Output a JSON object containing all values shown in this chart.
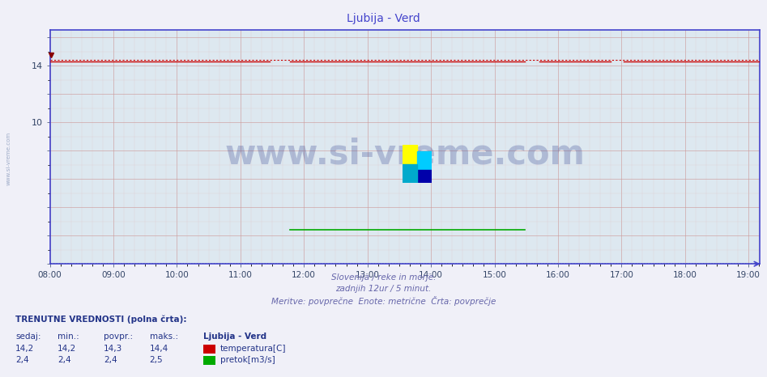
{
  "title": "Ljubija - Verd",
  "title_color": "#4444cc",
  "background_color": "#f0f0f8",
  "plot_bg_color": "#dde8f0",
  "x_start_hour": 8.0,
  "x_end_hour": 19.17,
  "x_ticks": [
    "08:00",
    "09:00",
    "10:00",
    "11:00",
    "12:00",
    "13:00",
    "14:00",
    "15:00",
    "16:00",
    "17:00",
    "18:00",
    "19:00"
  ],
  "x_tick_positions": [
    8,
    9,
    10,
    11,
    12,
    13,
    14,
    15,
    16,
    17,
    18,
    19
  ],
  "y_min": 0,
  "y_max": 16.5,
  "y_ticks_show": [
    10,
    14
  ],
  "grid_color": "#cc9999",
  "grid_minor_color": "#ddbbbb",
  "axis_color": "#4444cc",
  "watermark_text": "www.si-vreme.com",
  "watermark_color": "#223388",
  "temp_line_color": "#cc0000",
  "temp_solid_value": 14.3,
  "temp_dotted_value": 14.42,
  "flow_line_color": "#00aa00",
  "flow_dotted_color": "#004400",
  "flow_value": 2.4,
  "flow_start_hour": 11.75,
  "flow_end_hour": 15.5,
  "temp_gap1_start": 11.5,
  "temp_gap1_end": 11.75,
  "temp_gap2_start": 15.5,
  "temp_gap2_end": 15.7,
  "temp_gap3_start": 16.85,
  "temp_gap3_end": 17.0,
  "subtitle1": "Slovenija / reke in morje.",
  "subtitle2": "zadnjih 12ur / 5 minut.",
  "subtitle3": "Meritve: povprečne  Enote: metrične  Črta: povprečje",
  "subtitle_color": "#6666aa",
  "footer_title": "TRENUTNE VREDNOSTI (polna črta):",
  "footer_col_headers": [
    "sedaj:",
    "min.:",
    "povpr.:",
    "maks.:",
    "Ljubija - Verd"
  ],
  "footer_row1": [
    "14,2",
    "14,2",
    "14,3",
    "14,4",
    "temperatura[C]"
  ],
  "footer_row2": [
    "2,4",
    "2,4",
    "2,4",
    "2,5",
    "pretok[m3/s]"
  ],
  "temp_color_box": "#cc0000",
  "flow_color_box": "#00aa00",
  "footer_text_color": "#223388"
}
